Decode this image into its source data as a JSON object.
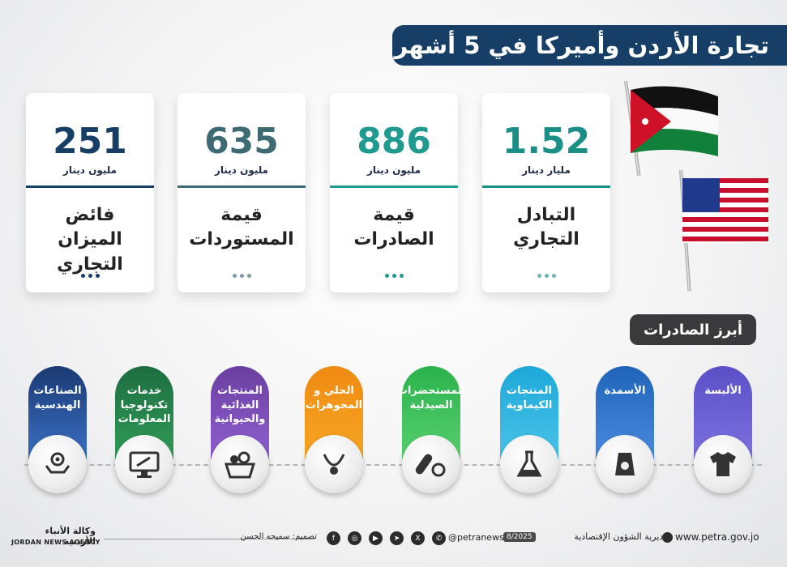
{
  "title": "تجارة الأردن وأميركا في 5 أشهر",
  "stats": [
    {
      "value": "251",
      "unit": "مليون دينار",
      "label": "فائض الميزان التجاري",
      "color": "#173e66"
    },
    {
      "value": "635",
      "unit": "مليون دينار",
      "label": "قيمة المستوردات",
      "color": "#3e6b73"
    },
    {
      "value": "886",
      "unit": "مليون دينار",
      "label": "قيمة الصادرات",
      "color": "#1f9a8f"
    },
    {
      "value": "1.52",
      "unit": "مليار دينار",
      "label": "التبادل التجاري",
      "color": "#1a8f86"
    }
  ],
  "flags": {
    "jordan": "jordan-flag",
    "usa": "usa-flag"
  },
  "exports_heading": "أبرز الصادرات",
  "exports": [
    {
      "label": "الصناعات الهندسية",
      "color": "#1b3a73",
      "icon": "gear-hand-icon"
    },
    {
      "label": "خدمات تكنولوجيا المعلومات",
      "color": "#1e6d3f",
      "icon": "monitor-tools-icon"
    },
    {
      "label": "المنتجات الغذائية والحيوانية",
      "color": "#6a3fa0",
      "icon": "food-basket-icon"
    },
    {
      "label": "الحلي و المجوهرات",
      "color": "#f08a12",
      "icon": "necklace-icon"
    },
    {
      "label": "المستحضرات الصيدلية",
      "color": "#2bb24c",
      "icon": "pills-icon"
    },
    {
      "label": "المنتجات الكيماوية",
      "color": "#1da8d8",
      "icon": "flask-icon"
    },
    {
      "label": "الأسمدة",
      "color": "#1f64b8",
      "icon": "fertilizer-bag-icon"
    },
    {
      "label": "الألبسة",
      "color": "#5b4fc7",
      "icon": "tshirt-icon"
    }
  ],
  "footer": {
    "agency_ar": "وكالة الأنباء الأردنية",
    "agency_en": "JORDAN NEWS AGENCY",
    "design": "تصميم: سميحه الحسن",
    "handle": "@petranews",
    "date": "8/2025",
    "department": "مديرية الشؤون الإقتصادية",
    "website": "www.petra.gov.jo"
  }
}
